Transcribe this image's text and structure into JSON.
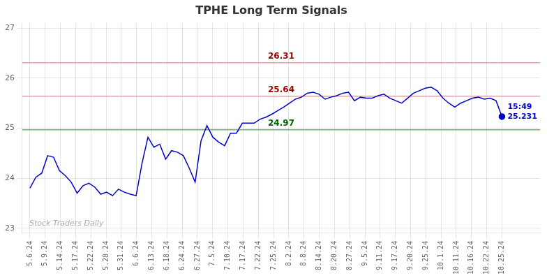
{
  "chart_data": {
    "type": "line",
    "title": "TPHE Long Term Signals",
    "title_color": "#333333",
    "color": "#0000cc",
    "x": [
      0,
      0.3875,
      0.775,
      1.1625,
      1.55,
      1.9375,
      2.325,
      2.7125,
      3.1,
      3.4875,
      3.875,
      4.2625,
      4.65,
      5.0375,
      5.425,
      5.8125,
      6.2,
      6.5875,
      6.975,
      7.3625,
      7.75,
      8.1375,
      8.525,
      8.9125,
      9.3,
      9.6875,
      10.075,
      10.4625,
      10.85,
      11.2375,
      11.625,
      12.0125,
      12.4,
      12.7875,
      13.175,
      13.5625,
      13.95,
      14.3375,
      14.725,
      15.1125,
      15.5,
      15.8875,
      16.275,
      16.6625,
      17.05,
      17.4375,
      17.825,
      18.2125,
      18.6,
      18.9875,
      19.375,
      19.7625,
      20.15,
      20.5375,
      20.925,
      21.3125,
      21.7,
      22.0875,
      22.475,
      22.8625,
      23.25,
      23.6375,
      24.025,
      24.4125,
      24.8,
      25.1875,
      25.575,
      25.9625,
      26.35,
      26.7375,
      27.125,
      27.5125,
      27.9,
      28.2875,
      28.675,
      29.0625,
      29.45,
      29.8375,
      30.225,
      30.6125,
      31
    ],
    "values": [
      23.8,
      24.02,
      24.1,
      24.45,
      24.42,
      24.15,
      24.05,
      23.92,
      23.7,
      23.85,
      23.9,
      23.82,
      23.68,
      23.72,
      23.65,
      23.78,
      23.72,
      23.68,
      23.65,
      24.3,
      24.82,
      24.62,
      24.68,
      24.38,
      24.55,
      24.52,
      24.45,
      24.2,
      23.92,
      24.75,
      25.05,
      24.82,
      24.72,
      24.65,
      24.9,
      24.9,
      25.1,
      25.1,
      25.1,
      25.18,
      25.22,
      25.28,
      25.35,
      25.42,
      25.5,
      25.58,
      25.62,
      25.7,
      25.72,
      25.68,
      25.58,
      25.62,
      25.65,
      25.7,
      25.72,
      25.55,
      25.62,
      25.6,
      25.6,
      25.65,
      25.68,
      25.6,
      25.55,
      25.5,
      25.6,
      25.7,
      25.75,
      25.8,
      25.82,
      25.75,
      25.6,
      25.5,
      25.42,
      25.5,
      25.55,
      25.6,
      25.62,
      25.58,
      25.6,
      25.55,
      25.231
    ],
    "xlim": [
      -0.5,
      33.5
    ],
    "xticks": [
      {
        "value": 0,
        "label": "5.6.24"
      },
      {
        "value": 1,
        "label": "5.9.24"
      },
      {
        "value": 2,
        "label": "5.14.24"
      },
      {
        "value": 3,
        "label": "5.17.24"
      },
      {
        "value": 4,
        "label": "5.22.24"
      },
      {
        "value": 5,
        "label": "5.28.24"
      },
      {
        "value": 6,
        "label": "5.31.24"
      },
      {
        "value": 7,
        "label": "6.6.24"
      },
      {
        "value": 8,
        "label": "6.13.24"
      },
      {
        "value": 9,
        "label": "6.18.24"
      },
      {
        "value": 10,
        "label": "6.24.24"
      },
      {
        "value": 11,
        "label": "6.27.24"
      },
      {
        "value": 12,
        "label": "7.5.24"
      },
      {
        "value": 13,
        "label": "7.10.24"
      },
      {
        "value": 14,
        "label": "7.17.24"
      },
      {
        "value": 15,
        "label": "7.22.24"
      },
      {
        "value": 16,
        "label": "7.25.24"
      },
      {
        "value": 17,
        "label": "8.2.24"
      },
      {
        "value": 18,
        "label": "8.8.24"
      },
      {
        "value": 19,
        "label": "8.14.24"
      },
      {
        "value": 20,
        "label": "8.20.24"
      },
      {
        "value": 21,
        "label": "8.27.24"
      },
      {
        "value": 22,
        "label": "9.5.24"
      },
      {
        "value": 23,
        "label": "9.11.24"
      },
      {
        "value": 24,
        "label": "9.17.24"
      },
      {
        "value": 25,
        "label": "9.20.24"
      },
      {
        "value": 26,
        "label": "9.25.24"
      },
      {
        "value": 27,
        "label": "10.1.24"
      },
      {
        "value": 28,
        "label": "10.11.24"
      },
      {
        "value": 29,
        "label": "10.16.24"
      },
      {
        "value": 30,
        "label": "10.22.24"
      },
      {
        "value": 31,
        "label": "10.25.24"
      }
    ],
    "ylim": [
      22.9,
      27.1
    ],
    "yticks": [
      23,
      24,
      25,
      26,
      27
    ],
    "grid": true,
    "hlines": [
      {
        "value": 26.31,
        "label": "26.31",
        "color": "#ff9999",
        "label_color": "#990000"
      },
      {
        "value": 25.64,
        "label": "25.64",
        "color": "#ff9999",
        "label_color": "#990000"
      },
      {
        "value": 24.97,
        "label": "24.97",
        "color": "#66bb66",
        "label_color": "#006600"
      }
    ],
    "annotations": [
      "15:49",
      "25.231"
    ],
    "watermark": "Stock Traders Daily"
  }
}
